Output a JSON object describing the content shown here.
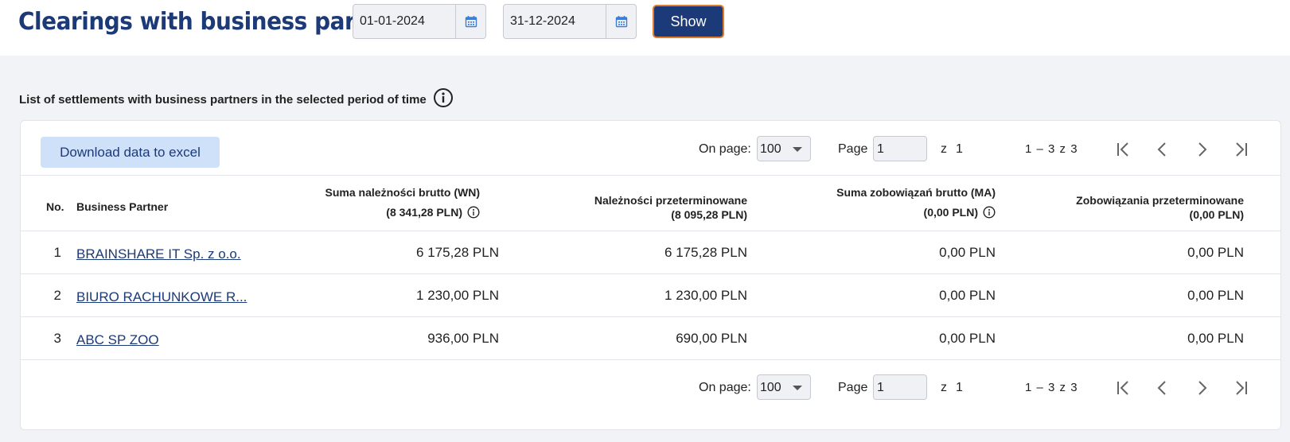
{
  "header": {
    "title": "Clearings with business partners",
    "date_from": "01-01-2024",
    "date_to": "31-12-2024",
    "show_label": "Show"
  },
  "section": {
    "heading": "List of settlements with business partners in the selected period of time"
  },
  "toolbar": {
    "excel_label": "Download data to excel"
  },
  "pager": {
    "on_page_label": "On page:",
    "on_page_value": "100",
    "page_label": "Page",
    "page_value": "1",
    "of_label": "z",
    "total_pages": "1",
    "range_text": "1 – 3 z 3"
  },
  "table": {
    "headers": {
      "no": "No.",
      "partner": "Business Partner",
      "col1_line1": "Suma należności brutto (WN)",
      "col1_line2": "(8 341,28 PLN)",
      "col2_line1": "Należności przeterminowane",
      "col2_line2": "(8 095,28 PLN)",
      "col3_line1": "Suma zobowiązań brutto (MA)",
      "col3_line2": "(0,00 PLN)",
      "col4_line1": "Zobowiązania przeterminowane",
      "col4_line2": "(0,00 PLN)"
    },
    "rows": [
      {
        "no": "1",
        "partner": "BRAINSHARE IT Sp. z o.o.",
        "c1": "6 175,28 PLN",
        "c2": "6 175,28 PLN",
        "c3": "0,00 PLN",
        "c4": "0,00 PLN"
      },
      {
        "no": "2",
        "partner": "BIURO RACHUNKOWE R...",
        "c1": "1 230,00 PLN",
        "c2": "1 230,00 PLN",
        "c3": "0,00 PLN",
        "c4": "0,00 PLN"
      },
      {
        "no": "3",
        "partner": "ABC SP ZOO",
        "c1": "936,00 PLN",
        "c2": "690,00 PLN",
        "c3": "0,00 PLN",
        "c4": "0,00 PLN"
      }
    ]
  },
  "colors": {
    "brand": "#1c3a78",
    "accent_border": "#e07a2d",
    "excel_bg": "#cfe0f9"
  }
}
